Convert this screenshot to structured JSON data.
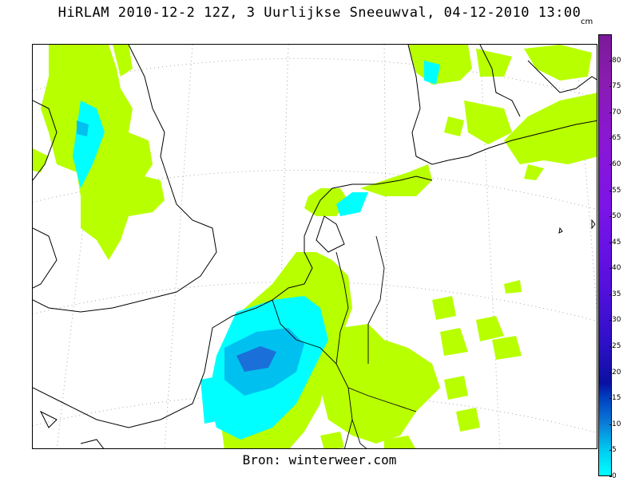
{
  "title": "HiRLAM 2010-12-2 12Z, 3 Uurlijkse Sneeuwval, 04-12-2010 13:00",
  "credit": "Bron: winterweer.com",
  "colorbar": {
    "unit": "cm",
    "ticks": [
      "0",
      "5",
      "10",
      "15",
      "20",
      "25",
      "30",
      "35",
      "40",
      "45",
      "50",
      "55",
      "60",
      "65",
      "70",
      "75",
      "80"
    ],
    "min": 0,
    "max": 85
  },
  "colors": {
    "light_snow": "#b8ff00",
    "moderate_snow": "#00ffff",
    "heavy_snow": "#00c0f0",
    "max_snow": "#1a6fd8",
    "coastline": "#000000",
    "graticule": "#a0a0a0"
  }
}
